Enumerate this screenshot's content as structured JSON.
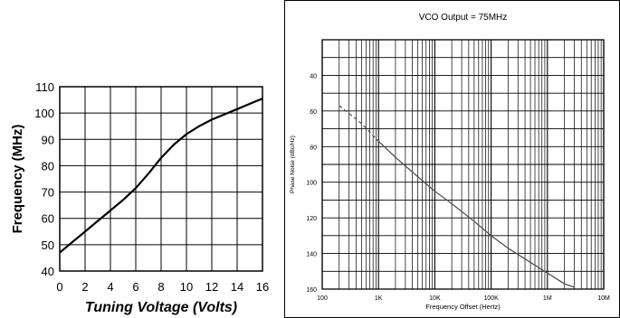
{
  "chart_data": [
    {
      "type": "line",
      "title": "",
      "xlabel": "Tuning Voltage (Volts)",
      "ylabel": "Frequency (MHz)",
      "xlim": [
        0,
        16
      ],
      "ylim": [
        40,
        110
      ],
      "xticks": [
        0,
        2,
        4,
        6,
        8,
        10,
        12,
        14,
        16
      ],
      "yticks": [
        40,
        50,
        60,
        70,
        80,
        90,
        100,
        110
      ],
      "grid": true,
      "series": [
        {
          "x": [
            0,
            1,
            2,
            3,
            4,
            5,
            6,
            7,
            8,
            9,
            10,
            11,
            12,
            13,
            14,
            15,
            16
          ],
          "y": [
            47,
            51,
            55,
            59,
            63,
            67,
            71.5,
            77,
            83,
            88,
            92,
            95,
            97.5,
            99.5,
            101.5,
            103.5,
            105.5
          ]
        }
      ]
    },
    {
      "type": "line",
      "title": "VCO Output = 75MHz",
      "xlabel": "Frequency Offset (Hertz)",
      "ylabel": "Phase Noise (dBc/Hz)",
      "xscale": "log",
      "xlim": [
        100,
        10000000
      ],
      "ylim": [
        20,
        160
      ],
      "y_inverted": true,
      "xticks": [
        100,
        1000,
        10000,
        100000,
        1000000,
        10000000
      ],
      "xticklabels": [
        "100",
        "1K",
        "10K",
        "100K",
        "1M",
        "10M"
      ],
      "yticks": [
        40,
        60,
        80,
        100,
        120,
        140,
        160
      ],
      "grid": true,
      "series": [
        {
          "style": "dashed",
          "x": [
            200,
            500,
            1000
          ],
          "y": [
            57,
            67,
            77
          ]
        },
        {
          "style": "solid",
          "x": [
            1000,
            2000,
            5000,
            10000,
            20000,
            50000,
            100000,
            200000,
            500000,
            1000000,
            2000000,
            3000000
          ],
          "y": [
            77,
            86,
            97,
            105,
            112,
            122,
            130,
            137,
            145,
            151,
            157,
            159
          ]
        }
      ]
    }
  ]
}
